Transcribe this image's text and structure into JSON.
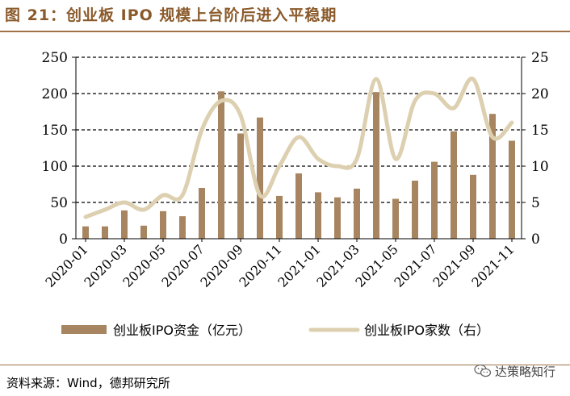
{
  "header": {
    "title": "图 21：创业板 IPO 规模上台阶后进入平稳期"
  },
  "footer": {
    "source": "资料来源：Wind，德邦研究所",
    "watermark_icon": "wechat-icon",
    "watermark": "达策略知行"
  },
  "colors": {
    "bar": "#A68560",
    "line": "#DDD0B0",
    "accent": "#8B5A2B"
  },
  "chart_data": {
    "type": "bar+line",
    "title": "图 21：创业板 IPO 规模上台阶后进入平稳期",
    "categories": [
      "2020-01",
      "2020-02",
      "2020-03",
      "2020-04",
      "2020-05",
      "2020-06",
      "2020-07",
      "2020-08",
      "2020-09",
      "2020-10",
      "2020-11",
      "2020-12",
      "2021-01",
      "2021-02",
      "2021-03",
      "2021-04",
      "2021-05",
      "2021-06",
      "2021-07",
      "2021-08",
      "2021-09",
      "2021-10",
      "2021-11"
    ],
    "x_tick_labels": [
      "2020-01",
      "2020-03",
      "2020-05",
      "2020-07",
      "2020-09",
      "2020-11",
      "2021-01",
      "2021-03",
      "2021-05",
      "2021-07",
      "2021-09",
      "2021-11"
    ],
    "series": [
      {
        "name": "创业板IPO资金（亿元）",
        "type": "bar",
        "axis": "left",
        "values": [
          17,
          17,
          39,
          18,
          38,
          31,
          70,
          203,
          145,
          167,
          59,
          90,
          64,
          57,
          69,
          202,
          55,
          80,
          106,
          148,
          88,
          172,
          135
        ]
      },
      {
        "name": "创业板IPO家数（右）",
        "type": "line",
        "axis": "right",
        "values": [
          3,
          4,
          5,
          4,
          6,
          6,
          15,
          19,
          17,
          6,
          10,
          14,
          11,
          10,
          11,
          22,
          11,
          19,
          20,
          18,
          22,
          14,
          16
        ]
      }
    ],
    "y_left": {
      "range": [
        0,
        250
      ],
      "ticks": [
        0,
        50,
        100,
        150,
        200,
        250
      ]
    },
    "y_right": {
      "range": [
        0,
        25
      ],
      "ticks": [
        0,
        5,
        10,
        15,
        20,
        25
      ]
    },
    "grid": "horizontal dashed",
    "legend_position": "bottom"
  }
}
